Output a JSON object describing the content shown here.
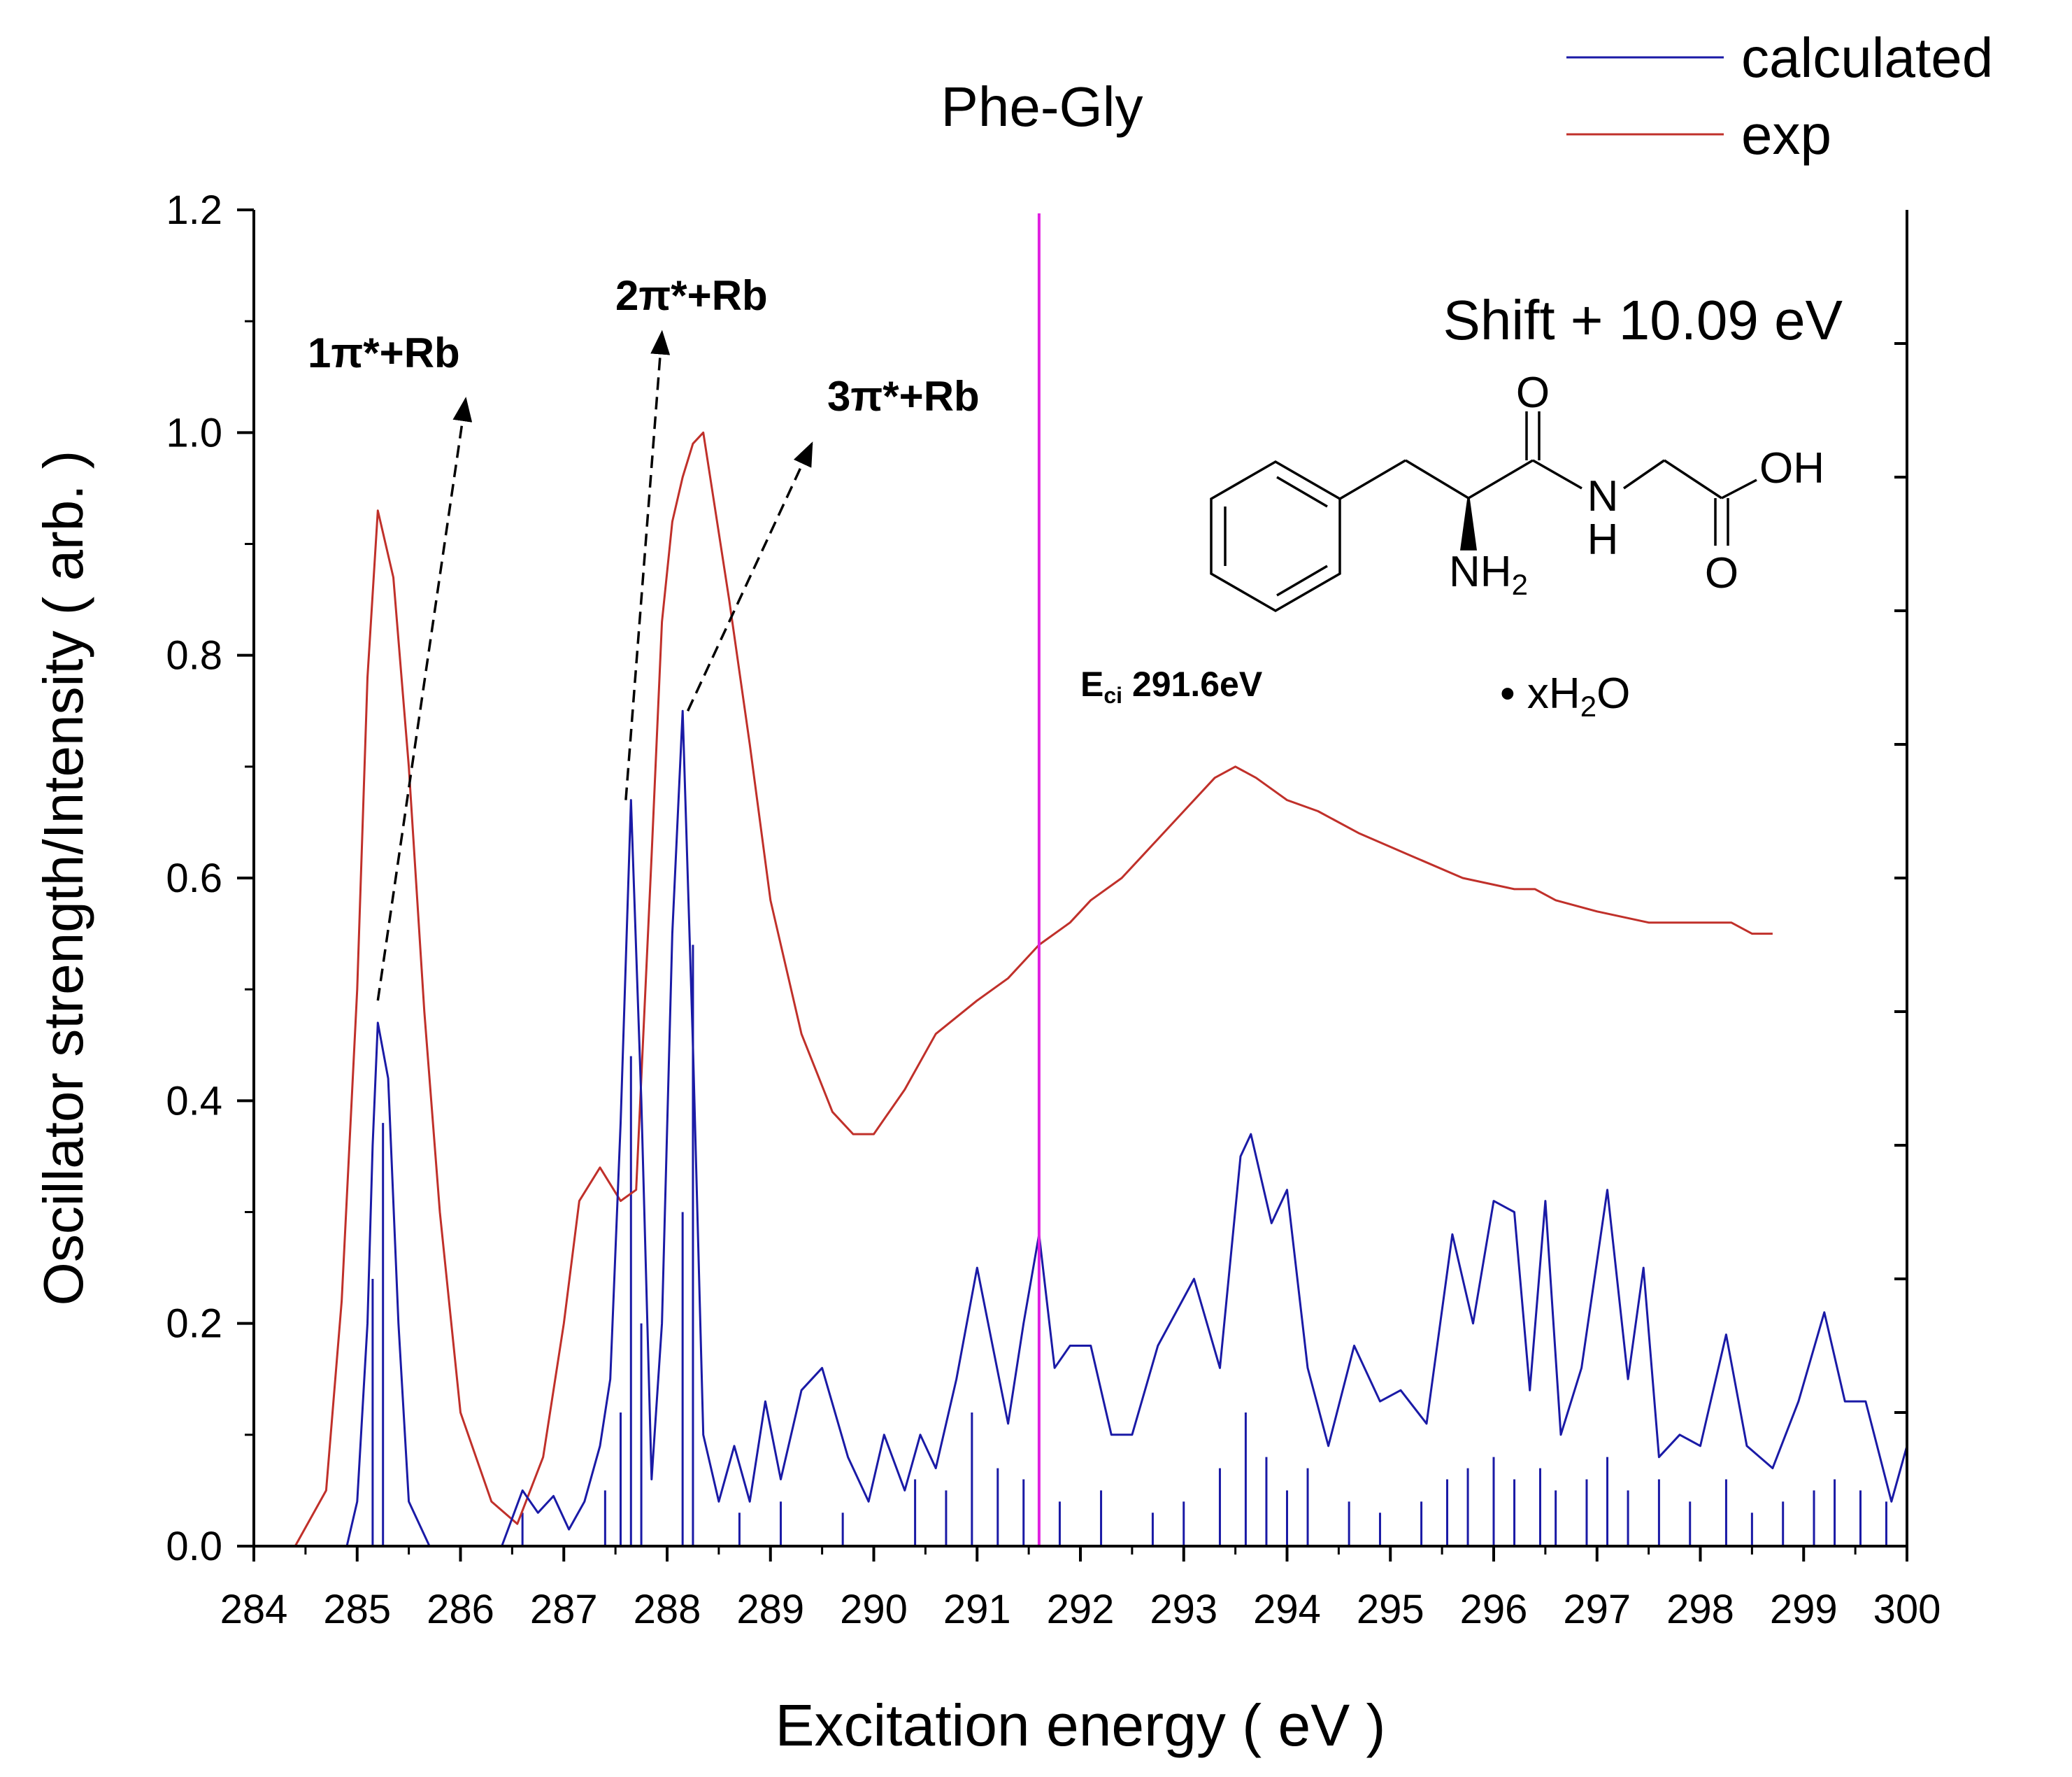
{
  "chart_data": {
    "type": "line",
    "title": "Phe-Gly",
    "xlabel": "Excitation energy ( eV )",
    "ylabel": "Oscillator strength/Intensity ( arb. )",
    "xlim": [
      284,
      300
    ],
    "ylim": [
      0,
      1.2
    ],
    "xticks": [
      "284",
      "285",
      "286",
      "287",
      "288",
      "289",
      "290",
      "291",
      "292",
      "293",
      "294",
      "295",
      "296",
      "297",
      "298",
      "299",
      "300"
    ],
    "yticks": [
      "0.0",
      "0.2",
      "0.4",
      "0.6",
      "0.8",
      "1.0",
      "1.2"
    ],
    "colors": {
      "calculated": "#1a1aa6",
      "exp": "#c0302a",
      "ionization_line": "#e020e0",
      "axis": "#000000"
    },
    "legend": {
      "position": "top-right",
      "entries": [
        {
          "name": "calculated",
          "color": "#1a1aa6"
        },
        {
          "name": "exp",
          "color": "#c0302a"
        }
      ]
    },
    "shift_label": "Shift + 10.09 eV",
    "ionization_energy": {
      "x": 291.6,
      "label_main": "E",
      "label_sub": "ci",
      "label_value": " 291.6eV"
    },
    "annotations": [
      {
        "label": "1π*+Rb",
        "from": [
          285.2,
          0.49
        ],
        "to": [
          286.05,
          1.03
        ]
      },
      {
        "label": "2π*+Rb",
        "from": [
          287.6,
          0.67
        ],
        "to": [
          287.95,
          1.09
        ]
      },
      {
        "label": "3π*+Rb",
        "from": [
          288.2,
          0.75
        ],
        "to": [
          289.4,
          0.99
        ]
      }
    ],
    "molecule": {
      "o_top": "O",
      "oh": "OH",
      "n": "N",
      "h": "H",
      "nh2_main": "NH",
      "nh2_sub": "2",
      "o_bottom": "O",
      "water_prefix": "• xH",
      "water_sub": "2",
      "water_suffix": "O"
    },
    "series": [
      {
        "name": "exp",
        "x": [
          284.4,
          284.7,
          284.85,
          285.0,
          285.1,
          285.2,
          285.35,
          285.5,
          285.65,
          285.8,
          286.0,
          286.3,
          286.55,
          286.8,
          287.0,
          287.15,
          287.35,
          287.55,
          287.7,
          287.85,
          287.95,
          288.05,
          288.15,
          288.25,
          288.35,
          288.45,
          288.6,
          288.8,
          289.0,
          289.3,
          289.6,
          289.8,
          290.0,
          290.3,
          290.6,
          291.0,
          291.3,
          291.6,
          291.9,
          292.1,
          292.4,
          292.6,
          293.0,
          293.3,
          293.5,
          293.7,
          294.0,
          294.3,
          294.7,
          295.2,
          295.7,
          296.2,
          296.4,
          296.6,
          297.0,
          297.5,
          298.0,
          298.3,
          298.5,
          298.7
        ],
        "y": [
          0.0,
          0.05,
          0.22,
          0.5,
          0.78,
          0.93,
          0.87,
          0.7,
          0.48,
          0.3,
          0.12,
          0.04,
          0.02,
          0.08,
          0.2,
          0.31,
          0.34,
          0.31,
          0.32,
          0.62,
          0.83,
          0.92,
          0.96,
          0.99,
          1.0,
          0.94,
          0.85,
          0.72,
          0.58,
          0.46,
          0.39,
          0.37,
          0.37,
          0.41,
          0.46,
          0.49,
          0.51,
          0.54,
          0.56,
          0.58,
          0.6,
          0.62,
          0.66,
          0.69,
          0.7,
          0.69,
          0.67,
          0.66,
          0.64,
          0.62,
          0.6,
          0.59,
          0.59,
          0.58,
          0.57,
          0.56,
          0.56,
          0.56,
          0.55,
          0.55
        ]
      },
      {
        "name": "calculated",
        "x": [
          284.9,
          285.0,
          285.1,
          285.15,
          285.2,
          285.3,
          285.4,
          285.5,
          285.7,
          286.0,
          286.4,
          286.6,
          286.75,
          286.9,
          287.05,
          287.2,
          287.35,
          287.45,
          287.55,
          287.65,
          287.75,
          287.85,
          287.95,
          288.05,
          288.15,
          288.25,
          288.35,
          288.5,
          288.65,
          288.8,
          288.95,
          289.1,
          289.3,
          289.5,
          289.75,
          289.95,
          290.1,
          290.3,
          290.45,
          290.6,
          290.8,
          291.0,
          291.15,
          291.3,
          291.45,
          291.6,
          291.75,
          291.9,
          292.1,
          292.3,
          292.5,
          292.75,
          293.1,
          293.35,
          293.55,
          293.65,
          293.85,
          294.0,
          294.2,
          294.4,
          294.65,
          294.9,
          295.1,
          295.35,
          295.6,
          295.8,
          296.0,
          296.2,
          296.35,
          296.5,
          296.65,
          296.85,
          297.1,
          297.3,
          297.45,
          297.6,
          297.8,
          298.0,
          298.25,
          298.45,
          298.7,
          298.95,
          299.2,
          299.4,
          299.6,
          299.85,
          300.0
        ],
        "y": [
          0.0,
          0.04,
          0.2,
          0.36,
          0.47,
          0.42,
          0.2,
          0.04,
          0.0,
          0.0,
          0.0,
          0.05,
          0.03,
          0.045,
          0.015,
          0.04,
          0.09,
          0.15,
          0.38,
          0.67,
          0.4,
          0.06,
          0.2,
          0.55,
          0.75,
          0.45,
          0.1,
          0.04,
          0.09,
          0.04,
          0.13,
          0.06,
          0.14,
          0.16,
          0.08,
          0.04,
          0.1,
          0.05,
          0.1,
          0.07,
          0.15,
          0.25,
          0.18,
          0.11,
          0.2,
          0.28,
          0.16,
          0.18,
          0.18,
          0.1,
          0.1,
          0.18,
          0.24,
          0.16,
          0.35,
          0.37,
          0.29,
          0.32,
          0.16,
          0.09,
          0.18,
          0.13,
          0.14,
          0.11,
          0.28,
          0.2,
          0.31,
          0.3,
          0.14,
          0.31,
          0.1,
          0.16,
          0.32,
          0.15,
          0.25,
          0.08,
          0.1,
          0.09,
          0.19,
          0.09,
          0.07,
          0.13,
          0.21,
          0.13,
          0.13,
          0.04,
          0.09
        ]
      }
    ],
    "sticks": [
      {
        "x": 285.15,
        "y": 0.24
      },
      {
        "x": 285.25,
        "y": 0.38
      },
      {
        "x": 286.6,
        "y": 0.03
      },
      {
        "x": 287.4,
        "y": 0.05
      },
      {
        "x": 287.55,
        "y": 0.12
      },
      {
        "x": 287.65,
        "y": 0.44
      },
      {
        "x": 287.75,
        "y": 0.2
      },
      {
        "x": 288.15,
        "y": 0.3
      },
      {
        "x": 288.25,
        "y": 0.54
      },
      {
        "x": 288.7,
        "y": 0.03
      },
      {
        "x": 289.1,
        "y": 0.04
      },
      {
        "x": 289.7,
        "y": 0.03
      },
      {
        "x": 290.4,
        "y": 0.06
      },
      {
        "x": 290.7,
        "y": 0.05
      },
      {
        "x": 290.95,
        "y": 0.12
      },
      {
        "x": 291.2,
        "y": 0.07
      },
      {
        "x": 291.45,
        "y": 0.06
      },
      {
        "x": 291.6,
        "y": 0.12
      },
      {
        "x": 291.8,
        "y": 0.04
      },
      {
        "x": 292.2,
        "y": 0.05
      },
      {
        "x": 292.7,
        "y": 0.03
      },
      {
        "x": 293.0,
        "y": 0.04
      },
      {
        "x": 293.35,
        "y": 0.07
      },
      {
        "x": 293.6,
        "y": 0.12
      },
      {
        "x": 293.8,
        "y": 0.08
      },
      {
        "x": 294.0,
        "y": 0.05
      },
      {
        "x": 294.2,
        "y": 0.07
      },
      {
        "x": 294.6,
        "y": 0.04
      },
      {
        "x": 294.9,
        "y": 0.03
      },
      {
        "x": 295.3,
        "y": 0.04
      },
      {
        "x": 295.55,
        "y": 0.06
      },
      {
        "x": 295.75,
        "y": 0.07
      },
      {
        "x": 296.0,
        "y": 0.08
      },
      {
        "x": 296.2,
        "y": 0.06
      },
      {
        "x": 296.45,
        "y": 0.07
      },
      {
        "x": 296.6,
        "y": 0.05
      },
      {
        "x": 296.9,
        "y": 0.06
      },
      {
        "x": 297.1,
        "y": 0.08
      },
      {
        "x": 297.3,
        "y": 0.05
      },
      {
        "x": 297.6,
        "y": 0.06
      },
      {
        "x": 297.9,
        "y": 0.04
      },
      {
        "x": 298.25,
        "y": 0.06
      },
      {
        "x": 298.5,
        "y": 0.03
      },
      {
        "x": 298.8,
        "y": 0.04
      },
      {
        "x": 299.1,
        "y": 0.05
      },
      {
        "x": 299.3,
        "y": 0.06
      },
      {
        "x": 299.55,
        "y": 0.05
      },
      {
        "x": 299.8,
        "y": 0.04
      }
    ]
  }
}
